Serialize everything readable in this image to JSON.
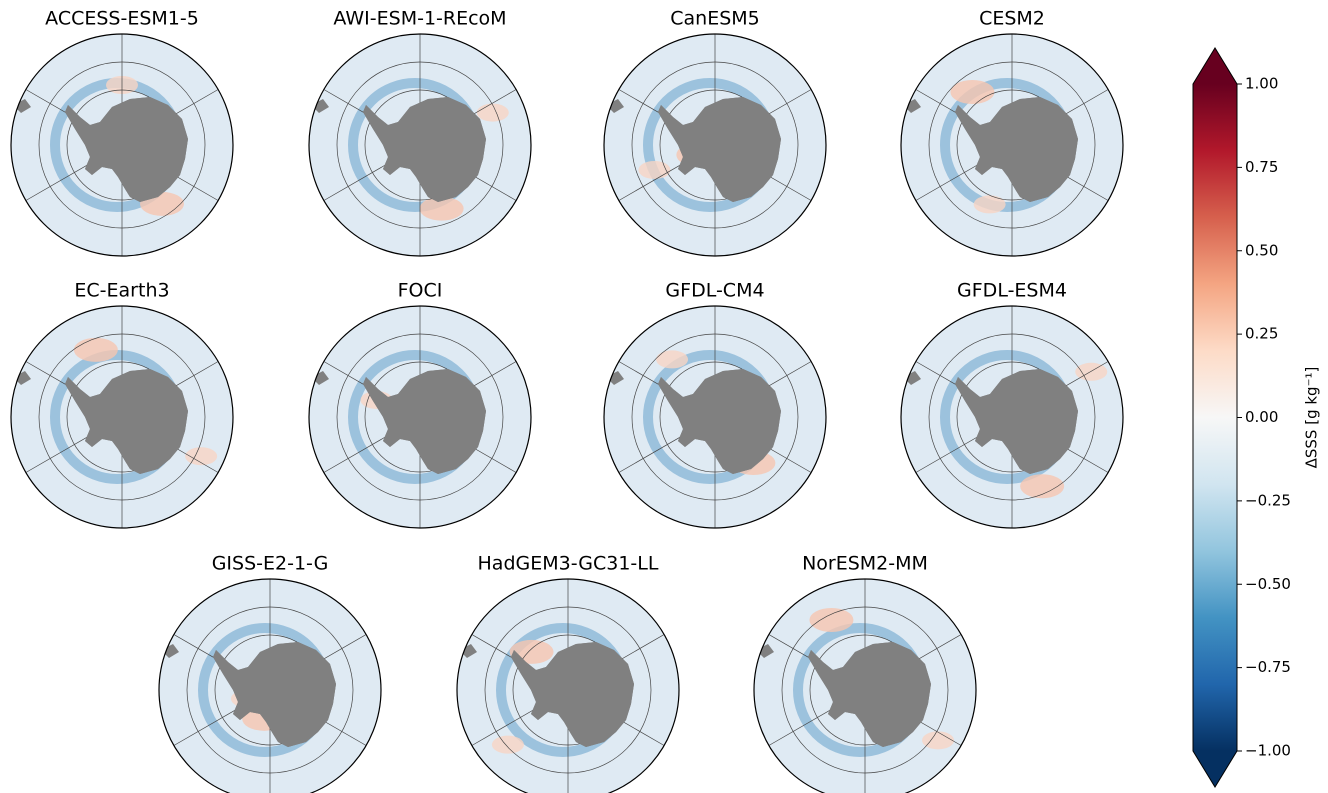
{
  "chart_data": {
    "type": "map",
    "panels": [
      "ACCESS-ESM1-5",
      "AWI-ESM-1-REcoM",
      "CanESM5",
      "CESM2",
      "EC-Earth3",
      "FOCI",
      "GFDL-CM4",
      "GFDL-ESM4",
      "GISS-E2-1-G",
      "HadGEM3-GC31-LL",
      "NorESM2-MM"
    ],
    "colorbar": {
      "label": "ΔSSS [g kg⁻¹]",
      "lim": [
        -1,
        1
      ],
      "extend": "both",
      "colormap": [
        "#053061",
        "#2166ac",
        "#4393c3",
        "#92c5de",
        "#d1e5f0",
        "#f7f7f7",
        "#fddbc7",
        "#f4a582",
        "#d6604d",
        "#b2182b",
        "#67001f"
      ],
      "ticks": [
        {
          "value": 1,
          "label": "1.00"
        },
        {
          "value": 0.75,
          "label": "0.75"
        },
        {
          "value": 0.5,
          "label": "0.50"
        },
        {
          "value": 0.25,
          "label": "0.25"
        },
        {
          "value": 0,
          "label": "0.00"
        },
        {
          "value": -0.25,
          "label": "−0.25"
        },
        {
          "value": -0.5,
          "label": "−0.50"
        },
        {
          "value": -0.75,
          "label": "−0.75"
        },
        {
          "value": -1,
          "label": "−1.00"
        }
      ]
    }
  }
}
